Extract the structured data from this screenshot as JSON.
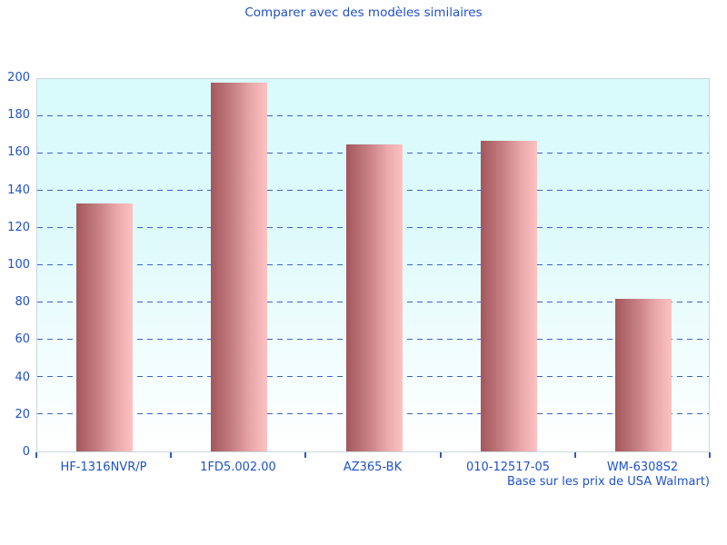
{
  "title": "Comparer avec des modèles similaires",
  "caption": "Base sur les prix de USA Walmart)",
  "colors": {
    "text_blue": "#1f52c8",
    "gridline_blue": "#3f62c4",
    "plot_border_gray": "#ccd7d9",
    "plot_bg_top_cyan": "#d9fbfc",
    "plot_bg_bottom": "#ffffff",
    "bar_gradient_dark": "#a3575c",
    "bar_gradient_light": "#fdc2c2"
  },
  "chart_data": {
    "type": "bar",
    "title": "Comparer avec des modèles similaires",
    "categories": [
      "HF-1316NVR/P",
      "1FD5.002.00",
      "AZ365-BK",
      "010-12517-05",
      "WM-6308S2"
    ],
    "values": [
      133,
      198,
      165,
      167,
      82
    ],
    "xlabel": "",
    "ylabel": "",
    "ylim": [
      0,
      200
    ],
    "ytick_step": 20,
    "yticks": [
      0,
      20,
      40,
      60,
      80,
      100,
      120,
      140,
      160,
      180,
      200
    ],
    "grid": "horizontal-dashed",
    "legend": "none",
    "bar_style": "horizontal gradient dark-red to light-pink",
    "annotation": "Base sur les prix de USA Walmart)"
  }
}
